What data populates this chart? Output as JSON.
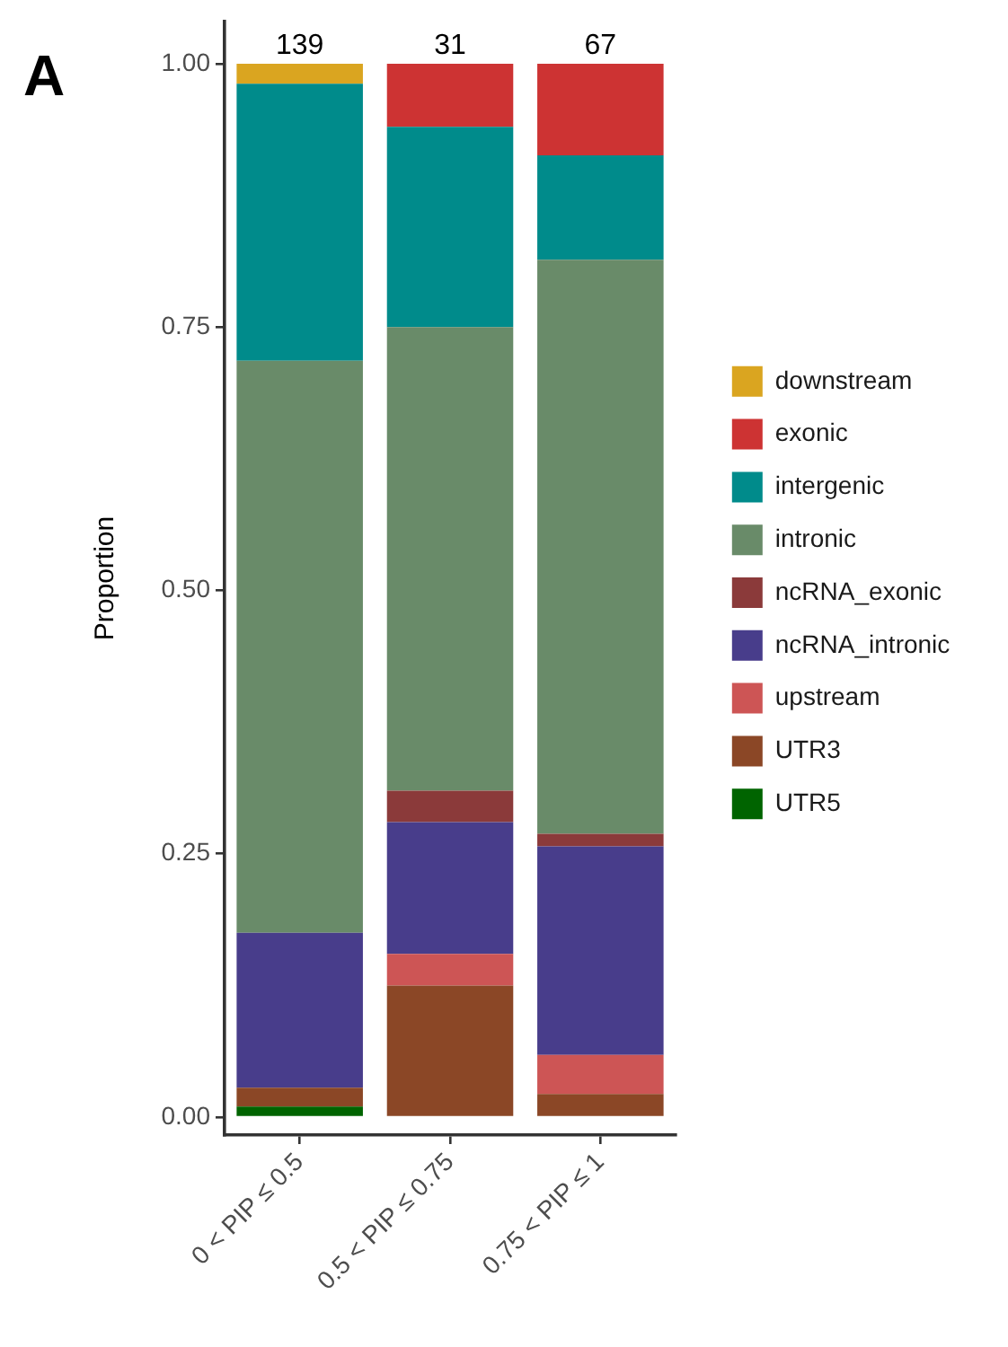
{
  "chart_data": {
    "type": "bar",
    "stacked": true,
    "categories": [
      "0 < PIP ≤ 0.5",
      "0.5 < PIP ≤ 0.75",
      "0.75 < PIP ≤ 1"
    ],
    "series": [
      {
        "name": "UTR5",
        "color": "#006400",
        "values": [
          0.01,
          null,
          null
        ]
      },
      {
        "name": "UTR3",
        "color": "#8b4726",
        "values": [
          0.018,
          0.125,
          0.022
        ]
      },
      {
        "name": "upstream",
        "color": "#cd5555",
        "values": [
          null,
          0.03,
          0.037
        ]
      },
      {
        "name": "ncRNA_intronic",
        "color": "#483d8b",
        "values": [
          0.147,
          0.125,
          0.198
        ]
      },
      {
        "name": "ncRNA_exonic",
        "color": "#8b3a3a",
        "values": [
          null,
          0.03,
          0.012
        ]
      },
      {
        "name": "intronic",
        "color": "#698b69",
        "values": [
          0.543,
          0.44,
          0.545
        ]
      },
      {
        "name": "intergenic",
        "color": "#008b8b",
        "values": [
          0.263,
          0.19,
          0.099
        ]
      },
      {
        "name": "exonic",
        "color": "#cd3333",
        "values": [
          null,
          0.06,
          0.087
        ]
      },
      {
        "name": "downstream",
        "color": "#daa520",
        "values": [
          0.019,
          null,
          null
        ]
      }
    ],
    "ylabel": "Proportion",
    "ylim": [
      -0.017,
      1.04
    ],
    "yticks": [
      {
        "value": 0,
        "label": "0.00"
      },
      {
        "value": 0.25,
        "label": "0.25"
      },
      {
        "value": 0.5,
        "label": "0.50"
      },
      {
        "value": 0.75,
        "label": "0.75"
      },
      {
        "value": 1,
        "label": "1.00"
      }
    ],
    "legend": "right",
    "grid": false,
    "annotations": [
      "A",
      {
        "text": "139",
        "x": "0 < PIP ≤ 0.5",
        "y": 1
      },
      {
        "text": "31",
        "x": "0.5 < PIP ≤ 0.75",
        "y": 1
      },
      {
        "text": "67",
        "x": "0.75 < PIP ≤ 1",
        "y": 1
      }
    ]
  }
}
